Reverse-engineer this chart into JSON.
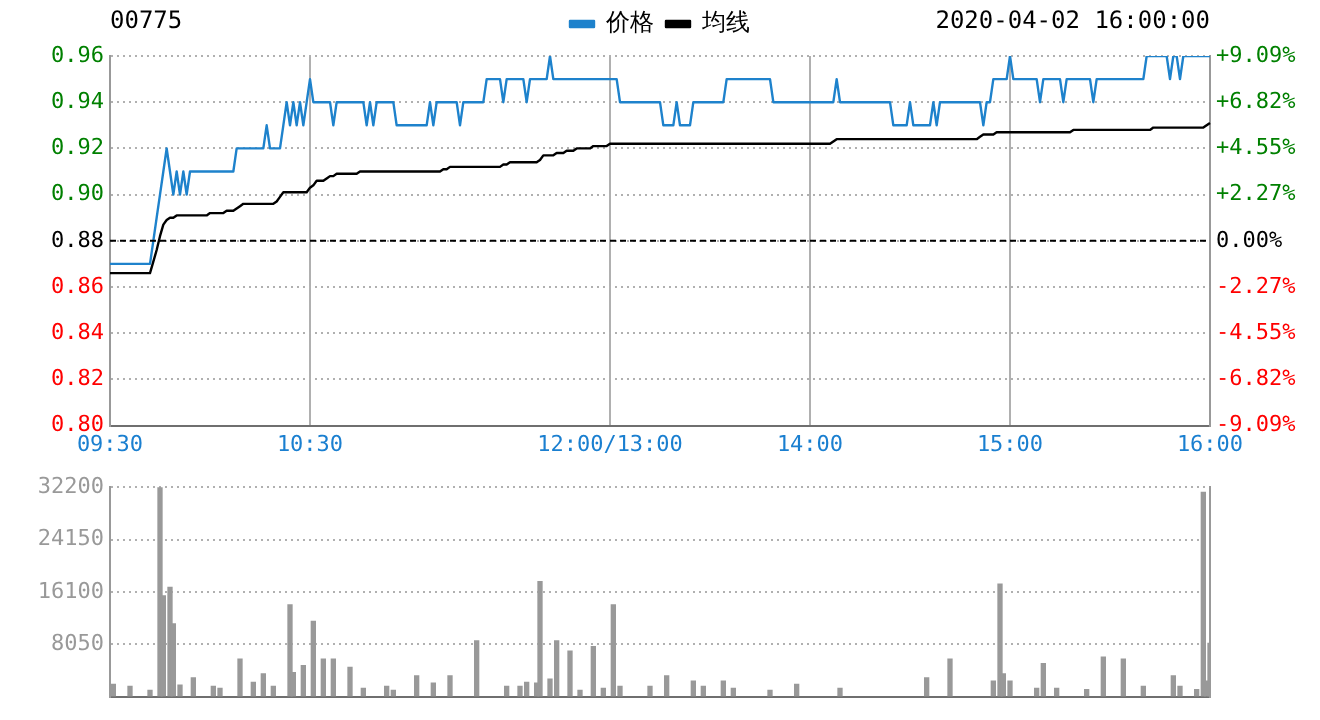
{
  "chart_data": [
    {
      "type": "line",
      "title": "00775",
      "subtitle": "2020-04-02 16:00:00",
      "legend": "top",
      "grid": true,
      "marker": "none",
      "categories": [
        "09:30",
        null,
        null,
        null,
        null,
        null,
        null,
        null,
        null,
        null,
        null,
        null,
        null,
        null,
        null,
        null,
        null,
        null,
        null,
        null,
        null,
        null,
        null,
        null,
        null,
        null,
        null,
        null,
        null,
        null,
        null,
        null,
        null,
        null,
        null,
        null,
        null,
        null,
        null,
        null,
        null,
        null,
        null,
        null,
        null,
        null,
        null,
        null,
        null,
        null,
        null,
        null,
        null,
        null,
        null,
        null,
        null,
        null,
        null,
        null,
        "10:30",
        null,
        null,
        null,
        null,
        null,
        null,
        null,
        null,
        null,
        null,
        null,
        null,
        null,
        null,
        null,
        null,
        null,
        null,
        null,
        null,
        null,
        null,
        null,
        null,
        null,
        null,
        null,
        null,
        null,
        null,
        null,
        null,
        null,
        null,
        null,
        null,
        null,
        null,
        null,
        null,
        null,
        null,
        null,
        null,
        null,
        null,
        null,
        null,
        null,
        null,
        null,
        null,
        null,
        null,
        null,
        null,
        null,
        null,
        null,
        null,
        null,
        null,
        null,
        null,
        null,
        null,
        null,
        null,
        null,
        null,
        null,
        null,
        null,
        null,
        null,
        null,
        null,
        null,
        null,
        null,
        null,
        null,
        null,
        null,
        null,
        null,
        null,
        null,
        null,
        "12:00/13:00",
        null,
        null,
        null,
        null,
        null,
        null,
        null,
        null,
        null,
        null,
        null,
        null,
        null,
        null,
        null,
        null,
        null,
        null,
        null,
        null,
        null,
        null,
        null,
        null,
        null,
        null,
        null,
        null,
        null,
        null,
        null,
        null,
        null,
        null,
        null,
        null,
        null,
        null,
        null,
        null,
        null,
        null,
        null,
        null,
        null,
        null,
        null,
        null,
        null,
        null,
        null,
        null,
        null,
        null,
        null,
        null,
        null,
        null,
        null,
        "14:00",
        null,
        null,
        null,
        null,
        null,
        null,
        null,
        null,
        null,
        null,
        null,
        null,
        null,
        null,
        null,
        null,
        null,
        null,
        null,
        null,
        null,
        null,
        null,
        null,
        null,
        null,
        null,
        null,
        null,
        null,
        null,
        null,
        null,
        null,
        null,
        null,
        null,
        null,
        null,
        null,
        null,
        null,
        null,
        null,
        null,
        null,
        null,
        null,
        null,
        null,
        null,
        null,
        null,
        null,
        null,
        null,
        null,
        null,
        null,
        "15:00",
        null,
        null,
        null,
        null,
        null,
        null,
        null,
        null,
        null,
        null,
        null,
        null,
        null,
        null,
        null,
        null,
        null,
        null,
        null,
        null,
        null,
        null,
        null,
        null,
        null,
        null,
        null,
        null,
        null,
        null,
        null,
        null,
        null,
        null,
        null,
        null,
        null,
        null,
        null,
        null,
        null,
        null,
        null,
        null,
        null,
        null,
        null,
        null,
        null,
        null,
        null,
        null,
        null,
        null,
        null,
        null,
        null,
        null,
        null,
        "16:00"
      ],
      "ylim": [
        0.8,
        0.96
      ],
      "yticks": [
        {
          "value": 0.8,
          "label": "0.80"
        },
        0.82,
        0.84,
        0.86,
        0.88,
        {
          "value": 0.9,
          "label": "0.90"
        },
        0.92,
        0.94,
        0.96
      ],
      "y2lim": [
        -9.09,
        9.09
      ],
      "y2ticks": [
        {
          "value": -9.09,
          "label": "-9.09%"
        },
        {
          "value": -6.82,
          "label": "-6.82%"
        },
        {
          "value": -4.55,
          "label": "-4.55%"
        },
        {
          "value": -2.27,
          "label": "-2.27%"
        },
        {
          "value": 0,
          "label": "0.00%"
        },
        {
          "value": 2.27,
          "label": "+2.27%"
        },
        {
          "value": 4.55,
          "label": "+4.55%"
        },
        {
          "value": 6.82,
          "label": "+6.82%"
        },
        {
          "value": 9.09,
          "label": "+9.09%"
        }
      ],
      "ref_lines": [
        {
          "axis": "y",
          "value": 0.88,
          "color": "#000000",
          "line_style": "dashed"
        }
      ],
      "series": [
        {
          "name": "价格",
          "color": "#1e82cc",
          "values": [
            0.87,
            0.87,
            0.87,
            0.87,
            0.87,
            0.87,
            0.87,
            0.87,
            0.87,
            0.87,
            0.87,
            0.87,
            0.87,
            0.88,
            0.89,
            0.9,
            0.91,
            0.92,
            0.91,
            0.9,
            0.91,
            0.9,
            0.91,
            0.9,
            0.91,
            0.91,
            0.91,
            0.91,
            0.91,
            0.91,
            0.91,
            0.91,
            0.91,
            0.91,
            0.91,
            0.91,
            0.91,
            0.91,
            0.92,
            0.92,
            0.92,
            0.92,
            0.92,
            0.92,
            0.92,
            0.92,
            0.92,
            0.93,
            0.92,
            0.92,
            0.92,
            0.92,
            0.93,
            0.94,
            0.93,
            0.94,
            0.93,
            0.94,
            0.93,
            0.94,
            0.95,
            0.94,
            0.94,
            0.94,
            0.94,
            0.94,
            0.94,
            0.93,
            0.94,
            0.94,
            0.94,
            0.94,
            0.94,
            0.94,
            0.94,
            0.94,
            0.94,
            0.93,
            0.94,
            0.93,
            0.94,
            0.94,
            0.94,
            0.94,
            0.94,
            0.94,
            0.93,
            0.93,
            0.93,
            0.93,
            0.93,
            0.93,
            0.93,
            0.93,
            0.93,
            0.93,
            0.94,
            0.93,
            0.94,
            0.94,
            0.94,
            0.94,
            0.94,
            0.94,
            0.94,
            0.93,
            0.94,
            0.94,
            0.94,
            0.94,
            0.94,
            0.94,
            0.94,
            0.95,
            0.95,
            0.95,
            0.95,
            0.95,
            0.94,
            0.95,
            0.95,
            0.95,
            0.95,
            0.95,
            0.95,
            0.94,
            0.95,
            0.95,
            0.95,
            0.95,
            0.95,
            0.95,
            0.96,
            0.95,
            0.95,
            0.95,
            0.95,
            0.95,
            0.95,
            0.95,
            0.95,
            0.95,
            0.95,
            0.95,
            0.95,
            0.95,
            0.95,
            0.95,
            0.95,
            0.95,
            0.95,
            0.95,
            0.95,
            0.94,
            0.94,
            0.94,
            0.94,
            0.94,
            0.94,
            0.94,
            0.94,
            0.94,
            0.94,
            0.94,
            0.94,
            0.94,
            0.93,
            0.93,
            0.93,
            0.93,
            0.94,
            0.93,
            0.93,
            0.93,
            0.93,
            0.94,
            0.94,
            0.94,
            0.94,
            0.94,
            0.94,
            0.94,
            0.94,
            0.94,
            0.94,
            0.95,
            0.95,
            0.95,
            0.95,
            0.95,
            0.95,
            0.95,
            0.95,
            0.95,
            0.95,
            0.95,
            0.95,
            0.95,
            0.95,
            0.94,
            0.94,
            0.94,
            0.94,
            0.94,
            0.94,
            0.94,
            0.94,
            0.94,
            0.94,
            0.94,
            0.94,
            0.94,
            0.94,
            0.94,
            0.94,
            0.94,
            0.94,
            0.94,
            0.95,
            0.94,
            0.94,
            0.94,
            0.94,
            0.94,
            0.94,
            0.94,
            0.94,
            0.94,
            0.94,
            0.94,
            0.94,
            0.94,
            0.94,
            0.94,
            0.94,
            0.93,
            0.93,
            0.93,
            0.93,
            0.93,
            0.94,
            0.93,
            0.93,
            0.93,
            0.93,
            0.93,
            0.93,
            0.94,
            0.93,
            0.94,
            0.94,
            0.94,
            0.94,
            0.94,
            0.94,
            0.94,
            0.94,
            0.94,
            0.94,
            0.94,
            0.94,
            0.94,
            0.93,
            0.94,
            0.94,
            0.95,
            0.95,
            0.95,
            0.95,
            0.95,
            0.96,
            0.95,
            0.95,
            0.95,
            0.95,
            0.95,
            0.95,
            0.95,
            0.95,
            0.94,
            0.95,
            0.95,
            0.95,
            0.95,
            0.95,
            0.95,
            0.94,
            0.95,
            0.95,
            0.95,
            0.95,
            0.95,
            0.95,
            0.95,
            0.95,
            0.94,
            0.95,
            0.95,
            0.95,
            0.95,
            0.95,
            0.95,
            0.95,
            0.95,
            0.95,
            0.95,
            0.95,
            0.95,
            0.95,
            0.95,
            0.95,
            0.96,
            0.96,
            0.96,
            0.96,
            0.96,
            0.96,
            0.96,
            0.95,
            0.96,
            0.96,
            0.95,
            0.96,
            0.96,
            0.96,
            0.96,
            0.96,
            0.96,
            0.96,
            0.96,
            0.96
          ]
        },
        {
          "name": "均线",
          "color": "#000000",
          "values": [
            0.866,
            0.866,
            0.866,
            0.866,
            0.866,
            0.866,
            0.866,
            0.866,
            0.866,
            0.866,
            0.866,
            0.866,
            0.866,
            0.871,
            0.876,
            0.882,
            0.887,
            0.889,
            0.89,
            0.89,
            0.891,
            0.891,
            0.891,
            0.891,
            0.891,
            0.891,
            0.891,
            0.891,
            0.891,
            0.891,
            0.892,
            0.892,
            0.892,
            0.892,
            0.892,
            0.893,
            0.893,
            0.893,
            0.894,
            0.895,
            0.896,
            0.896,
            0.896,
            0.896,
            0.896,
            0.896,
            0.896,
            0.896,
            0.896,
            0.896,
            0.897,
            0.899,
            0.901,
            0.901,
            0.901,
            0.901,
            0.901,
            0.901,
            0.901,
            0.901,
            0.903,
            0.904,
            0.906,
            0.906,
            0.906,
            0.907,
            0.908,
            0.908,
            0.909,
            0.909,
            0.909,
            0.909,
            0.909,
            0.909,
            0.909,
            0.91,
            0.91,
            0.91,
            0.91,
            0.91,
            0.91,
            0.91,
            0.91,
            0.91,
            0.91,
            0.91,
            0.91,
            0.91,
            0.91,
            0.91,
            0.91,
            0.91,
            0.91,
            0.91,
            0.91,
            0.91,
            0.91,
            0.91,
            0.91,
            0.91,
            0.911,
            0.911,
            0.912,
            0.912,
            0.912,
            0.912,
            0.912,
            0.912,
            0.912,
            0.912,
            0.912,
            0.912,
            0.912,
            0.912,
            0.912,
            0.912,
            0.912,
            0.912,
            0.913,
            0.913,
            0.914,
            0.914,
            0.914,
            0.914,
            0.914,
            0.914,
            0.914,
            0.914,
            0.914,
            0.915,
            0.917,
            0.917,
            0.917,
            0.917,
            0.918,
            0.918,
            0.918,
            0.919,
            0.919,
            0.919,
            0.92,
            0.92,
            0.92,
            0.92,
            0.92,
            0.921,
            0.921,
            0.921,
            0.921,
            0.921,
            0.922,
            0.922,
            0.922,
            0.922,
            0.922,
            0.922,
            0.922,
            0.922,
            0.922,
            0.922,
            0.922,
            0.922,
            0.922,
            0.922,
            0.922,
            0.922,
            0.922,
            0.922,
            0.922,
            0.922,
            0.922,
            0.922,
            0.922,
            0.922,
            0.922,
            0.922,
            0.922,
            0.922,
            0.922,
            0.922,
            0.922,
            0.922,
            0.922,
            0.922,
            0.922,
            0.922,
            0.922,
            0.922,
            0.922,
            0.922,
            0.922,
            0.922,
            0.922,
            0.922,
            0.922,
            0.922,
            0.922,
            0.922,
            0.922,
            0.922,
            0.922,
            0.922,
            0.922,
            0.922,
            0.922,
            0.922,
            0.922,
            0.922,
            0.922,
            0.922,
            0.922,
            0.922,
            0.922,
            0.922,
            0.922,
            0.922,
            0.922,
            0.923,
            0.924,
            0.924,
            0.924,
            0.924,
            0.924,
            0.924,
            0.924,
            0.924,
            0.924,
            0.924,
            0.924,
            0.924,
            0.924,
            0.924,
            0.924,
            0.924,
            0.924,
            0.924,
            0.924,
            0.924,
            0.924,
            0.924,
            0.924,
            0.924,
            0.924,
            0.924,
            0.924,
            0.924,
            0.924,
            0.924,
            0.924,
            0.924,
            0.924,
            0.924,
            0.924,
            0.924,
            0.924,
            0.924,
            0.924,
            0.924,
            0.924,
            0.924,
            0.924,
            0.925,
            0.926,
            0.926,
            0.926,
            0.926,
            0.927,
            0.927,
            0.927,
            0.927,
            0.927,
            0.927,
            0.927,
            0.927,
            0.927,
            0.927,
            0.927,
            0.927,
            0.927,
            0.927,
            0.927,
            0.927,
            0.927,
            0.927,
            0.927,
            0.927,
            0.927,
            0.927,
            0.927,
            0.928,
            0.928,
            0.928,
            0.928,
            0.928,
            0.928,
            0.928,
            0.928,
            0.928,
            0.928,
            0.928,
            0.928,
            0.928,
            0.928,
            0.928,
            0.928,
            0.928,
            0.928,
            0.928,
            0.928,
            0.928,
            0.928,
            0.928,
            0.928,
            0.929,
            0.929,
            0.929,
            0.929,
            0.929,
            0.929,
            0.929,
            0.929,
            0.929,
            0.929,
            0.929,
            0.929,
            0.929,
            0.929,
            0.929,
            0.929,
            0.93,
            0.931
          ]
        }
      ]
    },
    {
      "type": "bar",
      "grid": "y",
      "legend": false,
      "tick_labels": "y",
      "categories": [
        null,
        null,
        null,
        null,
        null,
        null,
        null,
        null,
        null,
        null,
        null,
        null,
        null,
        null,
        null,
        null,
        null,
        null,
        null,
        null,
        null,
        null,
        null,
        null,
        null,
        null,
        null,
        null,
        null,
        null,
        null,
        null,
        null,
        null,
        null,
        null,
        null,
        null,
        null,
        null,
        null,
        null,
        null,
        null,
        null,
        null,
        null,
        null,
        null,
        null,
        null,
        null,
        null,
        null,
        null,
        null,
        null,
        null,
        null,
        null,
        null,
        null,
        null,
        null,
        null,
        null,
        null,
        null,
        null,
        null,
        null,
        null,
        null,
        null,
        null,
        null,
        null,
        null,
        null,
        null,
        null,
        null,
        null,
        null,
        null,
        null,
        null,
        null,
        null,
        null,
        null,
        null,
        null,
        null,
        null,
        null,
        null,
        null,
        null,
        null,
        null,
        null,
        null,
        null,
        null,
        null,
        null,
        null,
        null,
        null,
        null,
        null,
        null,
        null,
        null,
        null,
        null,
        null,
        null,
        null,
        null,
        null,
        null,
        null,
        null,
        null,
        null,
        null,
        null,
        null,
        null,
        null,
        null,
        null,
        null,
        null,
        null,
        null,
        null,
        null,
        null,
        null,
        null,
        null,
        null,
        null,
        null,
        null,
        null,
        null,
        null,
        null,
        null,
        null,
        null,
        null,
        null,
        null,
        null,
        null,
        null,
        null,
        null,
        null,
        null,
        null,
        null,
        null,
        null,
        null,
        null,
        null,
        null,
        null,
        null,
        null,
        null,
        null,
        null,
        null,
        null,
        null,
        null,
        null,
        null,
        null,
        null,
        null,
        null,
        null,
        null,
        null,
        null,
        null,
        null,
        null,
        null,
        null,
        null,
        null,
        null,
        null,
        null,
        null,
        null,
        null,
        null,
        null,
        null,
        null,
        null,
        null,
        null,
        null,
        null,
        null,
        null,
        null,
        null,
        null,
        null,
        null,
        null,
        null,
        null,
        null,
        null,
        null,
        null,
        null,
        null,
        null,
        null,
        null,
        null,
        null,
        null,
        null,
        null,
        null,
        null,
        null,
        null,
        null,
        null,
        null,
        null,
        null,
        null,
        null,
        null,
        null,
        null,
        null,
        null,
        null,
        null,
        null,
        null,
        null,
        null,
        null,
        null,
        null,
        null,
        null,
        null,
        null,
        null,
        null,
        null,
        null,
        null,
        null,
        null,
        null,
        null,
        null,
        null,
        null,
        null,
        null,
        null,
        null,
        null,
        null,
        null,
        null,
        null,
        null,
        null,
        null,
        null,
        null,
        null,
        null,
        null,
        null,
        null,
        null,
        null,
        null,
        null,
        null,
        null,
        null,
        null,
        null,
        null,
        null,
        null,
        null,
        null,
        null,
        null,
        null,
        null,
        null,
        null,
        null,
        null,
        null,
        null,
        null,
        null,
        null,
        null,
        null,
        null,
        null,
        null
      ],
      "ylim": [
        0,
        32200
      ],
      "yticks": [
        {
          "value": 0,
          "label": null
        },
        8050,
        16100,
        24150,
        32200
      ],
      "series": [
        {
          "color": "#999999",
          "values": [
            0,
            1900,
            0,
            0,
            0,
            0,
            1600,
            0,
            0,
            0,
            0,
            0,
            1000,
            0,
            0,
            32200,
            15500,
            0,
            16800,
            11200,
            0,
            1800,
            0,
            0,
            0,
            2900,
            0,
            0,
            0,
            0,
            0,
            1600,
            0,
            1300,
            0,
            0,
            0,
            0,
            0,
            5800,
            0,
            0,
            0,
            2200,
            0,
            0,
            3500,
            0,
            0,
            1600,
            0,
            0,
            0,
            0,
            14100,
            3700,
            0,
            0,
            4800,
            0,
            0,
            11600,
            0,
            0,
            5800,
            0,
            0,
            5800,
            0,
            0,
            0,
            0,
            4500,
            0,
            0,
            0,
            1300,
            0,
            0,
            0,
            0,
            0,
            0,
            1600,
            0,
            1000,
            0,
            0,
            0,
            0,
            0,
            0,
            3200,
            0,
            0,
            0,
            0,
            2100,
            0,
            0,
            0,
            0,
            3200,
            0,
            0,
            0,
            0,
            0,
            0,
            0,
            8600,
            0,
            0,
            0,
            0,
            0,
            0,
            0,
            0,
            1600,
            0,
            0,
            0,
            1600,
            0,
            2200,
            0,
            0,
            2100,
            17700,
            0,
            0,
            2700,
            0,
            8600,
            0,
            0,
            0,
            7000,
            0,
            0,
            1000,
            0,
            0,
            0,
            7700,
            0,
            0,
            1300,
            0,
            0,
            14100,
            0,
            1600,
            0,
            0,
            0,
            0,
            0,
            0,
            0,
            0,
            1600,
            0,
            0,
            0,
            0,
            3200,
            0,
            0,
            0,
            0,
            0,
            0,
            0,
            2400,
            0,
            0,
            1600,
            0,
            0,
            0,
            0,
            0,
            2400,
            0,
            0,
            1300,
            0,
            0,
            0,
            0,
            0,
            0,
            0,
            0,
            0,
            0,
            1000,
            0,
            0,
            0,
            0,
            0,
            0,
            0,
            1900,
            0,
            0,
            0,
            0,
            0,
            0,
            0,
            0,
            0,
            0,
            0,
            0,
            1300,
            0,
            0,
            0,
            0,
            0,
            0,
            0,
            0,
            0,
            0,
            0,
            0,
            0,
            0,
            0,
            0,
            0,
            0,
            0,
            0,
            0,
            0,
            0,
            0,
            0,
            2900,
            0,
            0,
            0,
            0,
            0,
            0,
            5800,
            0,
            0,
            0,
            0,
            0,
            0,
            0,
            0,
            0,
            0,
            0,
            0,
            2400,
            0,
            17300,
            3500,
            0,
            2400,
            0,
            0,
            0,
            0,
            0,
            0,
            0,
            1300,
            0,
            5100,
            0,
            0,
            0,
            1300,
            0,
            0,
            0,
            0,
            0,
            0,
            0,
            0,
            1100,
            0,
            0,
            0,
            0,
            6100,
            0,
            0,
            0,
            0,
            0,
            5800,
            0,
            0,
            0,
            0,
            0,
            1600,
            0,
            0,
            0,
            0,
            0,
            0,
            0,
            0,
            3200,
            0,
            1600,
            0,
            0,
            0,
            0,
            1100,
            0,
            31400,
            2400,
            8200
          ]
        }
      ]
    }
  ]
}
